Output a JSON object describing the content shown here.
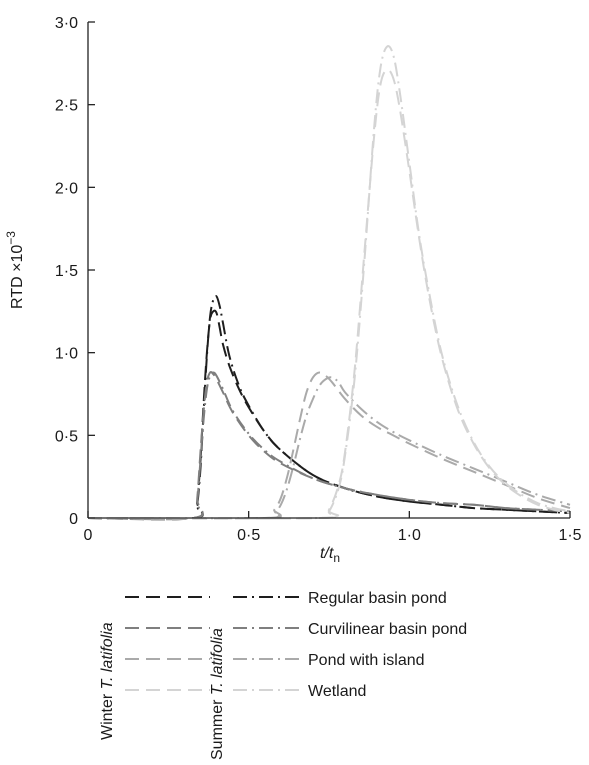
{
  "chart_data": {
    "type": "line",
    "xlabel": "t/t",
    "xlabel_sub": "n",
    "ylabel": "RTD ×10",
    "ylabel_sup": "−3",
    "xlim": [
      0,
      1.5
    ],
    "ylim": [
      0,
      3.0
    ],
    "xticks": [
      0,
      0.5,
      1.0,
      1.5
    ],
    "xtick_labels": [
      "0",
      "0·5",
      "1·0",
      "1·5"
    ],
    "yticks": [
      0,
      0.5,
      1.0,
      1.5,
      2.0,
      2.5,
      3.0
    ],
    "ytick_labels": [
      "0",
      "0·5",
      "1·0",
      "1·5",
      "2·0",
      "2·5",
      "3·0"
    ],
    "grid": false,
    "legend": {
      "placement": "bottom",
      "column_headers": [
        "Winter T. latifolia",
        "Summer T. latifolia"
      ],
      "column_header_parts": [
        {
          "prefix": "Winter ",
          "italic": "T. latifolia"
        },
        {
          "prefix": "Summer ",
          "italic": "T. latifolia"
        }
      ],
      "entries": [
        "Regular basin pond",
        "Curvilinear basin pond",
        "Pond with island",
        "Wetland"
      ]
    },
    "colors": {
      "Regular basin pond": "#1e1e1e",
      "Curvilinear basin pond": "#7f7f7f",
      "Pond with island": "#aaaaaa",
      "Wetland": "#d4d4d4"
    },
    "series": [
      {
        "name": "Regular basin pond",
        "season": "Winter T. latifolia",
        "x": [
          0,
          0.33,
          0.34,
          0.35,
          0.36,
          0.37,
          0.38,
          0.39,
          0.4,
          0.41,
          0.42,
          0.44,
          0.47,
          0.5,
          0.55,
          0.6,
          0.7,
          0.8,
          0.9,
          1.0,
          1.1,
          1.2,
          1.3,
          1.4,
          1.5
        ],
        "y": [
          0,
          0,
          0.1,
          0.35,
          0.7,
          1.0,
          1.2,
          1.25,
          1.24,
          1.15,
          1.05,
          0.92,
          0.78,
          0.67,
          0.52,
          0.41,
          0.26,
          0.18,
          0.13,
          0.1,
          0.08,
          0.06,
          0.05,
          0.04,
          0.03
        ]
      },
      {
        "name": "Regular basin pond",
        "season": "Summer T. latifolia",
        "x": [
          0,
          0.33,
          0.34,
          0.35,
          0.36,
          0.37,
          0.38,
          0.39,
          0.4,
          0.41,
          0.42,
          0.44,
          0.47,
          0.5,
          0.55,
          0.6,
          0.7,
          0.8,
          0.9,
          1.0,
          1.1,
          1.2,
          1.3,
          1.4,
          1.5
        ],
        "y": [
          0,
          0,
          0.08,
          0.3,
          0.65,
          0.98,
          1.22,
          1.32,
          1.34,
          1.28,
          1.18,
          0.98,
          0.8,
          0.68,
          0.52,
          0.41,
          0.26,
          0.18,
          0.13,
          0.1,
          0.08,
          0.06,
          0.05,
          0.04,
          0.03
        ]
      },
      {
        "name": "Curvilinear basin pond",
        "season": "Winter T. latifolia",
        "x": [
          0,
          0.33,
          0.34,
          0.35,
          0.36,
          0.37,
          0.38,
          0.39,
          0.4,
          0.42,
          0.45,
          0.5,
          0.55,
          0.6,
          0.7,
          0.8,
          0.9,
          1.0,
          1.1,
          1.2,
          1.3,
          1.4,
          1.5
        ],
        "y": [
          0,
          0,
          0.12,
          0.4,
          0.65,
          0.82,
          0.88,
          0.87,
          0.84,
          0.76,
          0.64,
          0.5,
          0.4,
          0.33,
          0.24,
          0.18,
          0.14,
          0.11,
          0.09,
          0.08,
          0.06,
          0.05,
          0.04
        ]
      },
      {
        "name": "Curvilinear basin pond",
        "season": "Summer T. latifolia",
        "x": [
          0,
          0.33,
          0.34,
          0.35,
          0.36,
          0.37,
          0.38,
          0.39,
          0.4,
          0.42,
          0.45,
          0.5,
          0.55,
          0.6,
          0.7,
          0.8,
          0.9,
          1.0,
          1.1,
          1.2,
          1.3,
          1.4,
          1.5
        ],
        "y": [
          0,
          0,
          0.1,
          0.35,
          0.6,
          0.78,
          0.86,
          0.88,
          0.86,
          0.78,
          0.65,
          0.51,
          0.41,
          0.34,
          0.24,
          0.18,
          0.14,
          0.11,
          0.09,
          0.08,
          0.06,
          0.05,
          0.04
        ]
      },
      {
        "name": "Pond with island",
        "season": "Winter T. latifolia",
        "x": [
          0,
          0.55,
          0.58,
          0.6,
          0.62,
          0.64,
          0.66,
          0.68,
          0.7,
          0.72,
          0.74,
          0.76,
          0.8,
          0.85,
          0.9,
          0.95,
          1.0,
          1.1,
          1.2,
          1.3,
          1.4,
          1.5
        ],
        "y": [
          0,
          0,
          0.05,
          0.12,
          0.25,
          0.42,
          0.6,
          0.76,
          0.85,
          0.88,
          0.86,
          0.82,
          0.72,
          0.62,
          0.55,
          0.5,
          0.45,
          0.36,
          0.28,
          0.2,
          0.12,
          0.06
        ]
      },
      {
        "name": "Pond with island",
        "season": "Summer T. latifolia",
        "x": [
          0,
          0.55,
          0.58,
          0.6,
          0.62,
          0.64,
          0.66,
          0.68,
          0.7,
          0.72,
          0.74,
          0.76,
          0.78,
          0.8,
          0.85,
          0.9,
          0.95,
          1.0,
          1.1,
          1.2,
          1.3,
          1.4,
          1.5
        ],
        "y": [
          0,
          0,
          0.03,
          0.08,
          0.18,
          0.32,
          0.48,
          0.62,
          0.72,
          0.8,
          0.84,
          0.85,
          0.82,
          0.76,
          0.66,
          0.58,
          0.52,
          0.47,
          0.38,
          0.3,
          0.22,
          0.14,
          0.08
        ]
      },
      {
        "name": "Wetland",
        "season": "Winter T. latifolia",
        "x": [
          0,
          0.72,
          0.75,
          0.78,
          0.8,
          0.83,
          0.86,
          0.89,
          0.91,
          0.93,
          0.95,
          0.97,
          1.0,
          1.03,
          1.06,
          1.1,
          1.15,
          1.2,
          1.25,
          1.3,
          1.35,
          1.4,
          1.45,
          1.5
        ],
        "y": [
          0,
          0,
          0.05,
          0.2,
          0.4,
          0.9,
          1.6,
          2.3,
          2.62,
          2.71,
          2.66,
          2.48,
          2.1,
          1.7,
          1.35,
          0.98,
          0.66,
          0.45,
          0.3,
          0.2,
          0.13,
          0.08,
          0.05,
          0.03
        ]
      },
      {
        "name": "Wetland",
        "season": "Summer T. latifolia",
        "x": [
          0,
          0.72,
          0.75,
          0.78,
          0.8,
          0.83,
          0.86,
          0.89,
          0.91,
          0.93,
          0.95,
          0.97,
          1.0,
          1.03,
          1.06,
          1.1,
          1.15,
          1.2,
          1.25,
          1.3,
          1.35,
          1.4,
          1.45,
          1.5
        ],
        "y": [
          0,
          0,
          0.04,
          0.18,
          0.38,
          0.85,
          1.55,
          2.35,
          2.72,
          2.85,
          2.8,
          2.58,
          2.15,
          1.72,
          1.38,
          1.0,
          0.68,
          0.46,
          0.31,
          0.21,
          0.14,
          0.09,
          0.06,
          0.04
        ]
      }
    ]
  }
}
